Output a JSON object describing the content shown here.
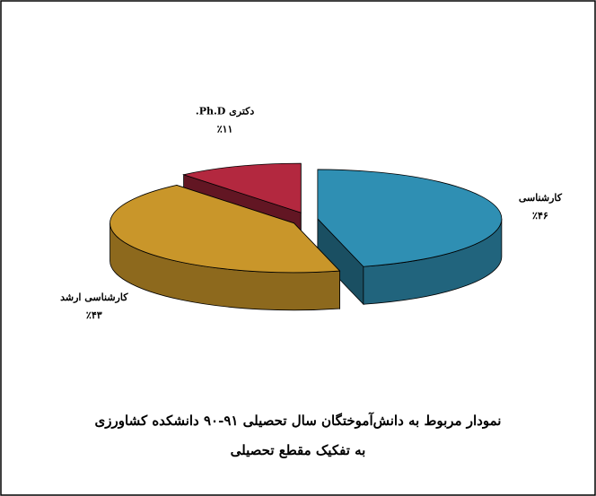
{
  "chart_data": {
    "type": "pie3d",
    "title": "نمودار مربوط به دانش‌آموختگان سال تحصیلی ۹۱-۹۰ دانشکده کشاورزی",
    "subtitle": "به تفکیک مقطع تحصیلی",
    "categories": [
      "کارشناسی",
      "کارشناسی ارشد",
      "دکتری Ph.D."
    ],
    "values": [
      46,
      43,
      11
    ],
    "value_labels": [
      "٪۴۶",
      "٪۴۳",
      "٪۱۱"
    ],
    "colors": [
      "#2f8fb3",
      "#c9962a",
      "#b3283f"
    ]
  }
}
